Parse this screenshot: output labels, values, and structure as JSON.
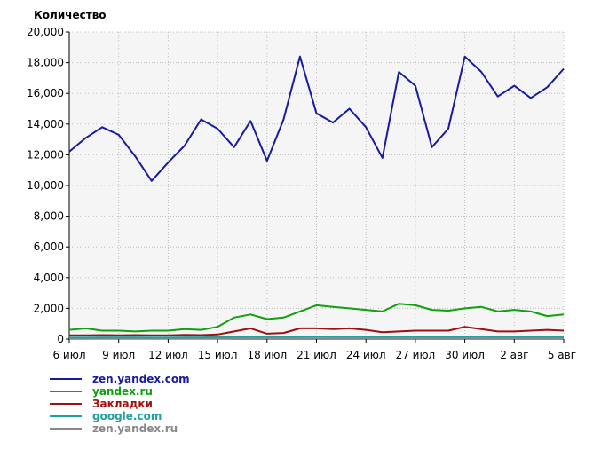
{
  "chart_data": {
    "type": "line",
    "ylabel": "Количество",
    "ylim": [
      0,
      20000
    ],
    "yticks": [
      "0",
      "2,000",
      "4,000",
      "6,000",
      "8,000",
      "10,000",
      "12,000",
      "14,000",
      "16,000",
      "18,000",
      "20,000"
    ],
    "ytick_values": [
      0,
      2000,
      4000,
      6000,
      8000,
      10000,
      12000,
      14000,
      16000,
      18000,
      20000
    ],
    "xtick_labels": [
      "6 июл",
      "9 июл",
      "12 июл",
      "15 июл",
      "18 июл",
      "21 июл",
      "24 июл",
      "27 июл",
      "30 июл",
      "2 авг",
      "5 авг"
    ],
    "xtick_indices": [
      0,
      3,
      6,
      9,
      12,
      15,
      18,
      21,
      24,
      27,
      30
    ],
    "x": [
      "6 июл",
      "7 июл",
      "8 июл",
      "9 июл",
      "10 июл",
      "11 июл",
      "12 июл",
      "13 июл",
      "14 июл",
      "15 июл",
      "16 июл",
      "17 июл",
      "18 июл",
      "19 июл",
      "20 июл",
      "21 июл",
      "22 июл",
      "23 июл",
      "24 июл",
      "25 июл",
      "26 июл",
      "27 июл",
      "28 июл",
      "29 июл",
      "30 июл",
      "31 июл",
      "1 авг",
      "2 авг",
      "3 авг",
      "4 авг",
      "5 авг"
    ],
    "grid": true,
    "legend_position": "bottom-left",
    "series": [
      {
        "name": "zen.yandex.com",
        "color": "#1a1aa0",
        "values": [
          12200,
          13100,
          13800,
          13300,
          11900,
          10300,
          11500,
          12600,
          14300,
          13700,
          12500,
          14200,
          11600,
          14300,
          18400,
          14700,
          14100,
          15000,
          13800,
          11800,
          17400,
          16500,
          12500,
          13700,
          18400,
          17400,
          15800,
          16500,
          15700,
          16400,
          17600
        ]
      },
      {
        "name": "yandex.ru",
        "color": "#10a010",
        "values": [
          600,
          700,
          550,
          550,
          500,
          550,
          550,
          650,
          600,
          800,
          1400,
          1600,
          1300,
          1400,
          1800,
          2200,
          2100,
          2000,
          1900,
          1800,
          2300,
          2200,
          1900,
          1850,
          2000,
          2100,
          1800,
          1900,
          1800,
          1500,
          1600
        ]
      },
      {
        "name": "Закладки",
        "color": "#a01010",
        "values": [
          250,
          250,
          260,
          250,
          260,
          250,
          250,
          280,
          260,
          300,
          500,
          700,
          350,
          400,
          700,
          700,
          650,
          700,
          600,
          450,
          500,
          550,
          550,
          550,
          800,
          650,
          500,
          500,
          550,
          600,
          550
        ]
      },
      {
        "name": "google.com",
        "color": "#20a0a0",
        "values": [
          100,
          100,
          110,
          110,
          110,
          100,
          100,
          110,
          110,
          130,
          150,
          160,
          150,
          150,
          160,
          170,
          160,
          160,
          160,
          150,
          160,
          160,
          150,
          150,
          160,
          160,
          150,
          150,
          150,
          150,
          150
        ]
      },
      {
        "name": "zen.yandex.ru",
        "color": "#888888",
        "values": [
          40,
          40,
          40,
          40,
          40,
          40,
          40,
          40,
          40,
          40,
          50,
          50,
          50,
          50,
          50,
          50,
          50,
          50,
          50,
          50,
          50,
          50,
          50,
          50,
          50,
          50,
          50,
          50,
          50,
          50,
          50
        ]
      }
    ]
  }
}
